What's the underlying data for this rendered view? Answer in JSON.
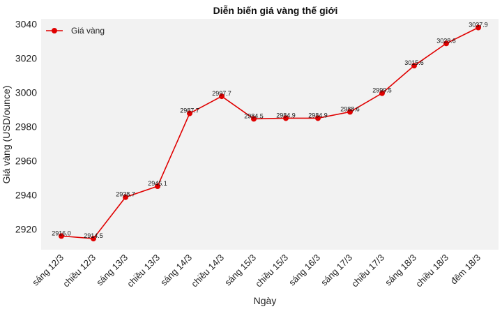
{
  "chart_data": {
    "type": "line",
    "title": "Diễn biến giá vàng thế giới",
    "xlabel": "Ngày",
    "ylabel": "Giá vàng (USD/ounce)",
    "categories": [
      "sáng 12/3",
      "chiều 12/3",
      "sáng 13/3",
      "chiều 13/3",
      "sáng 14/3",
      "chiều 14/3",
      "sáng 15/3",
      "chiều 15/3",
      "sáng 16/3",
      "sáng 17/3",
      "chiều 17/3",
      "sáng 18/3",
      "chiều 18/3",
      "đêm 18/3"
    ],
    "series": [
      {
        "name": "Giá vàng",
        "color": "#e00000",
        "values": [
          2916.0,
          2914.5,
          2938.7,
          2945.1,
          2987.7,
          2997.7,
          2984.5,
          2984.9,
          2984.9,
          2988.6,
          2999.5,
          3015.6,
          3028.6,
          3037.9
        ],
        "labels": [
          "2916.0",
          "2914.5",
          "2938.7",
          "2945.1",
          "2987.7",
          "2997.7",
          "2984.5",
          "2984.9",
          "2984.9",
          "2988.6",
          "2999.5",
          "3015.6",
          "3028.6",
          "3037.9"
        ]
      }
    ],
    "ylim": [
      2908,
      3043
    ],
    "yticks": [
      2920,
      2940,
      2960,
      2980,
      3000,
      3020,
      3040
    ],
    "grid": false,
    "legend": "top-left",
    "background": "#f2f2f2"
  }
}
